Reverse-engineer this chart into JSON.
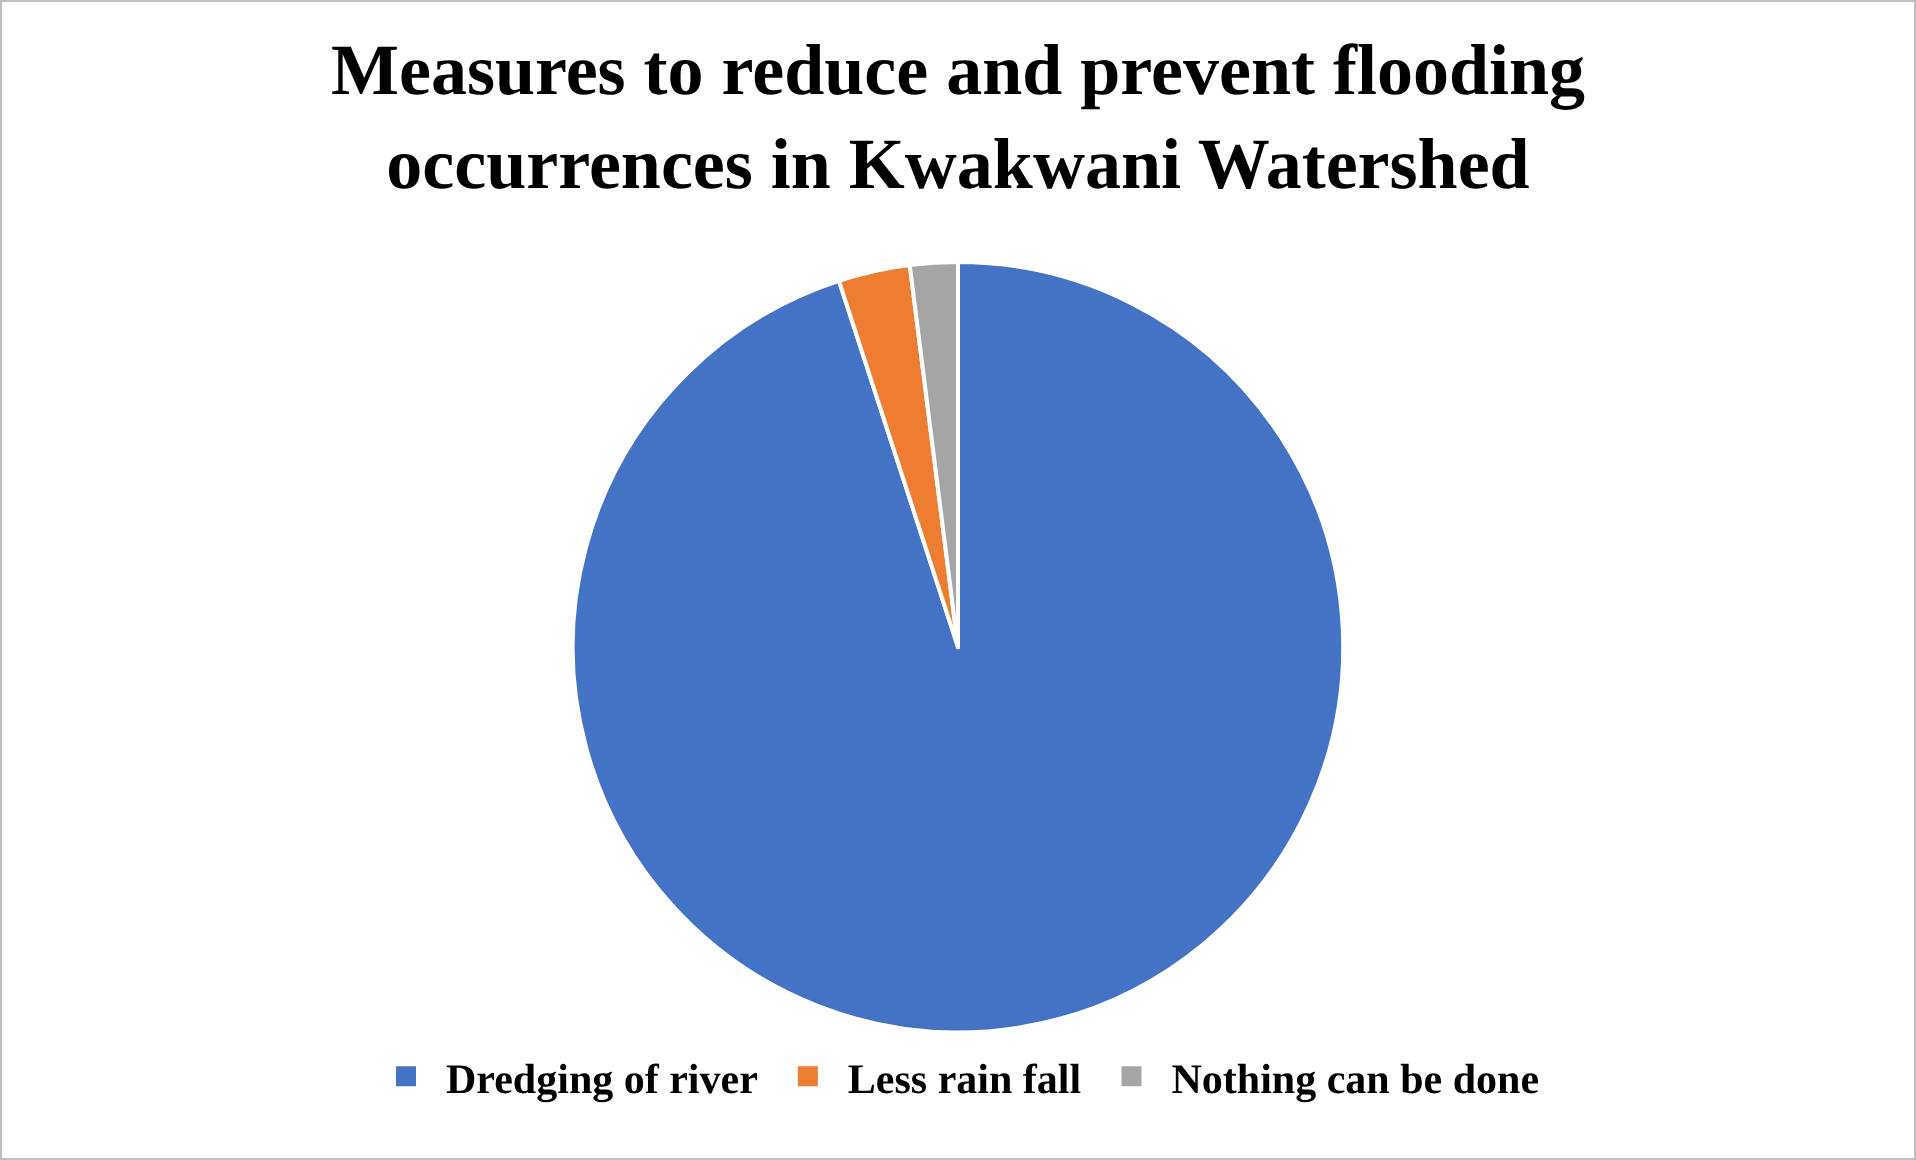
{
  "chart_data": {
    "type": "pie",
    "title": "Measures to reduce and prevent flooding occurrences in Kwakwani Watershed",
    "categories": [
      "Dredging of river",
      "Less rain fall",
      "Nothing can be done"
    ],
    "values": [
      95,
      3,
      2
    ],
    "colors": [
      "#4472c4",
      "#ed7d31",
      "#a5a5a5"
    ],
    "legend": "bottom"
  }
}
